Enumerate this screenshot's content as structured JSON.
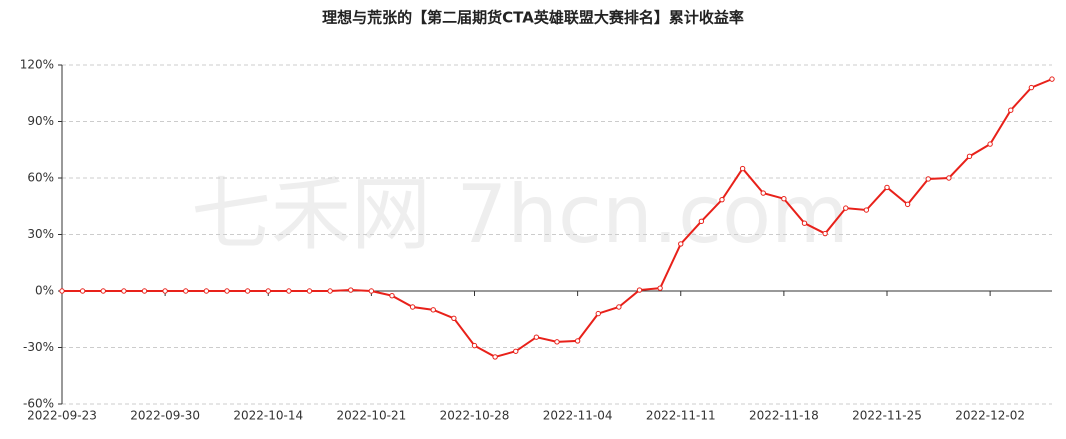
{
  "chart_data": {
    "type": "line",
    "title": "理想与荒张的【第二届期货CTA英雄联盟大赛排名】累计收益率",
    "watermark": "七禾网 7hcn.com",
    "categories": [
      "2022-09-23",
      null,
      null,
      null,
      null,
      "2022-09-30",
      null,
      null,
      null,
      null,
      "2022-10-14",
      null,
      null,
      null,
      null,
      "2022-10-21",
      null,
      null,
      null,
      null,
      "2022-10-28",
      null,
      null,
      null,
      null,
      "2022-11-04",
      null,
      null,
      null,
      null,
      "2022-11-11",
      null,
      null,
      null,
      null,
      "2022-11-18",
      null,
      null,
      null,
      null,
      "2022-11-25",
      null,
      null,
      null,
      null,
      "2022-12-02",
      null,
      null,
      null
    ],
    "series": [
      {
        "name": "累计收益率",
        "color": "#e8211a",
        "values": [
          0,
          0,
          0,
          0,
          0,
          0,
          0,
          0,
          0,
          0,
          0,
          0,
          0,
          0,
          0.5,
          0,
          -2.5,
          -8.5,
          -10,
          -14.5,
          -29,
          -35,
          -32,
          -24.5,
          -27,
          -26.5,
          -12,
          -8.5,
          0.5,
          1.5,
          25,
          37,
          48.5,
          65,
          52,
          49,
          36,
          30.5,
          44,
          43,
          55,
          46,
          59.5,
          60,
          71.5,
          78,
          96,
          108,
          112.5
        ]
      }
    ],
    "ylim": [
      -60,
      120
    ],
    "yticks": [
      {
        "value": -60,
        "label": "-60%"
      },
      {
        "value": -30,
        "label": "-30%"
      },
      {
        "value": 0,
        "label": "0%"
      },
      {
        "value": 30,
        "label": "30%"
      },
      {
        "value": 60,
        "label": "60%"
      },
      {
        "value": 90,
        "label": "90%"
      },
      {
        "value": 120,
        "label": "120%"
      }
    ],
    "grid": true
  }
}
